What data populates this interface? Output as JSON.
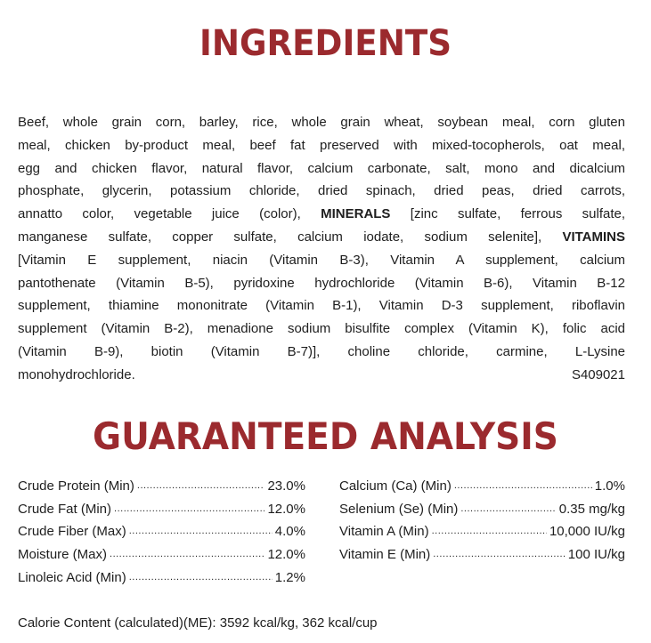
{
  "ingredients": {
    "title": "INGREDIENTS",
    "lines": [
      [
        {
          "t": "Beef, whole grain corn, barley, rice, whole grain wheat, soybean meal, corn gluten"
        }
      ],
      [
        {
          "t": "meal, chicken by-product meal, beef fat preserved with mixed-tocopherols, oat meal,"
        }
      ],
      [
        {
          "t": "egg and chicken flavor, natural flavor, calcium carbonate, salt, mono and dicalcium"
        }
      ],
      [
        {
          "t": "phosphate, glycerin, potassium chloride, dried spinach, dried peas, dried carrots,"
        }
      ],
      [
        {
          "t": "annatto color, vegetable juice (color), "
        },
        {
          "t": "MINERALS",
          "b": true
        },
        {
          "t": " [zinc sulfate, ferrous sulfate,"
        }
      ],
      [
        {
          "t": "manganese sulfate, copper sulfate, calcium iodate, sodium selenite], "
        },
        {
          "t": "VITAMINS",
          "b": true
        }
      ],
      [
        {
          "t": "[Vitamin E supplement, niacin (Vitamin B-3), Vitamin A supplement, calcium"
        }
      ],
      [
        {
          "t": "pantothenate (Vitamin B-5), pyridoxine hydrochloride (Vitamin B-6), Vitamin B-12"
        }
      ],
      [
        {
          "t": "supplement, thiamine mononitrate (Vitamin B-1), Vitamin D-3 supplement, riboflavin"
        }
      ],
      [
        {
          "t": "supplement (Vitamin B-2), menadione sodium bisulfite complex (Vitamin K), folic acid"
        }
      ],
      [
        {
          "t": "(Vitamin B-9), biotin (Vitamin B-7)], choline chloride, carmine, L-Lysine"
        }
      ]
    ],
    "last_line": "monohydrochloride.",
    "code": "S409021"
  },
  "analysis": {
    "title": "GUARANTEED ANALYSIS",
    "left": [
      {
        "label": "Crude Protein (Min)",
        "value": "23.0%"
      },
      {
        "label": "Crude Fat (Min)",
        "value": "12.0%"
      },
      {
        "label": "Crude Fiber (Max)",
        "value": "4.0%"
      },
      {
        "label": "Moisture (Max)",
        "value": "12.0%"
      },
      {
        "label": "Linoleic Acid (Min)",
        "value": "1.2%"
      }
    ],
    "right": [
      {
        "label": "Calcium (Ca) (Min)",
        "value": "1.0%"
      },
      {
        "label": "Selenium (Se) (Min)",
        "value": "0.35 mg/kg"
      },
      {
        "label": "Vitamin A (Min)",
        "value": "10,000 IU/kg"
      },
      {
        "label": "Vitamin E (Min)",
        "value": "100 IU/kg"
      }
    ],
    "calorie": "Calorie Content (calculated)(ME): 3592 kcal/kg, 362 kcal/cup"
  },
  "colors": {
    "heading": "#9b2a2e",
    "text": "#1e1e1e"
  }
}
